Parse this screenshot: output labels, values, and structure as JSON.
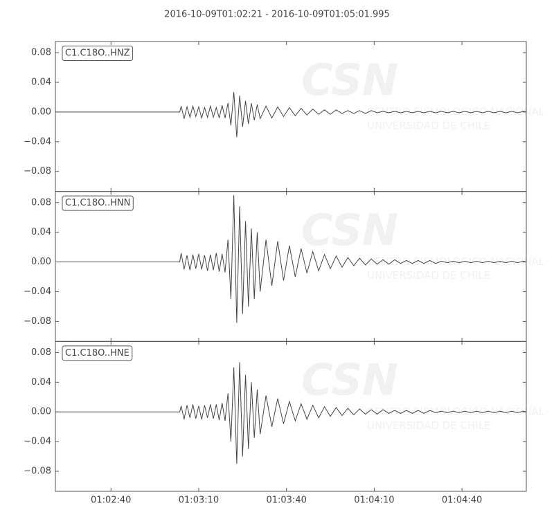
{
  "title": "2016-10-09T01:02:21  -  2016-10-09T01:05:01.995",
  "watermark": [
    "CSN",
    "CENTRO SISMOLOGICO NACIONAL",
    "UNIVERSIDAD DE CHILE"
  ],
  "chart_data": [
    {
      "type": "line",
      "xlim": [
        0,
        160.995
      ],
      "ylim": [
        -0.107,
        0.095
      ],
      "yticks": [
        {
          "value": -0.08,
          "label": "−0.08"
        },
        {
          "value": -0.04,
          "label": "−0.04"
        },
        {
          "value": 0,
          "label": "0.00"
        },
        0.04,
        0.08
      ],
      "x": [
        0,
        42.5,
        43,
        44,
        45,
        46,
        47,
        48,
        49,
        50,
        51,
        52,
        53,
        54,
        55,
        56,
        57,
        58,
        59,
        60,
        61,
        62,
        63,
        64,
        65,
        66,
        67,
        68,
        69,
        70,
        72,
        74,
        76,
        78,
        80,
        82,
        84,
        86,
        88,
        90,
        92,
        94,
        96,
        98,
        100,
        102,
        104,
        106,
        108,
        110,
        112,
        114,
        116,
        118,
        120,
        122,
        124,
        126,
        128,
        130,
        132,
        134,
        136,
        138,
        140,
        142,
        144,
        146,
        148,
        150,
        152,
        154,
        156,
        158,
        160,
        161
      ],
      "series": [
        {
          "name": "C1.C18O..HNZ",
          "color": "#444444",
          "values": [
            0,
            0,
            0.008,
            -0.009,
            0.007,
            -0.007,
            0.008,
            -0.006,
            0.007,
            -0.008,
            0.006,
            -0.007,
            0.008,
            -0.007,
            0.006,
            -0.008,
            0.009,
            -0.008,
            0.012,
            -0.018,
            0.027,
            -0.034,
            0.022,
            -0.02,
            0.015,
            -0.016,
            0.012,
            -0.011,
            0.01,
            -0.009,
            0.008,
            -0.008,
            0.007,
            -0.006,
            0.006,
            -0.005,
            0.005,
            -0.004,
            0.004,
            -0.003,
            0.003,
            -0.003,
            0.003,
            -0.002,
            0.002,
            -0.002,
            0.002,
            -0.002,
            0.002,
            -0.001,
            0.001,
            -0.001,
            0.001,
            -0.001,
            0.001,
            -0.001,
            0.001,
            -0.001,
            0.001,
            -0.001,
            0.001,
            -0.001,
            0.001,
            -0.001,
            0.001,
            -0.001,
            0.001,
            -0.001,
            0.001,
            -0.001,
            0.001,
            -0.001,
            0.001,
            -0.001,
            0.001,
            0
          ]
        }
      ]
    },
    {
      "type": "line",
      "xlim": [
        0,
        160.995
      ],
      "ylim": [
        -0.107,
        0.095
      ],
      "yticks": [
        {
          "value": -0.08,
          "label": "−0.08"
        },
        {
          "value": -0.04,
          "label": "−0.04"
        },
        {
          "value": 0,
          "label": "0.00"
        },
        0.04,
        0.08
      ],
      "x": [
        0,
        42.5,
        43,
        44,
        45,
        46,
        47,
        48,
        49,
        50,
        51,
        52,
        53,
        54,
        55,
        56,
        57,
        58,
        59,
        60,
        61,
        62,
        63,
        64,
        65,
        66,
        67,
        68,
        69,
        70,
        72,
        74,
        76,
        78,
        80,
        82,
        84,
        86,
        88,
        90,
        92,
        94,
        96,
        98,
        100,
        102,
        104,
        106,
        108,
        110,
        112,
        114,
        116,
        118,
        120,
        122,
        124,
        126,
        128,
        130,
        132,
        134,
        136,
        138,
        140,
        142,
        144,
        146,
        148,
        150,
        152,
        154,
        156,
        158,
        160,
        161
      ],
      "series": [
        {
          "name": "C1.C18O..HNN",
          "color": "#444444",
          "values": [
            0,
            0,
            0.012,
            -0.01,
            0.009,
            -0.011,
            0.01,
            -0.009,
            0.011,
            -0.01,
            0.009,
            -0.012,
            0.01,
            -0.011,
            0.012,
            -0.013,
            0.011,
            -0.014,
            0.03,
            -0.05,
            0.09,
            -0.082,
            0.075,
            -0.07,
            0.055,
            -0.06,
            0.045,
            -0.05,
            0.04,
            -0.04,
            0.03,
            -0.032,
            0.028,
            -0.025,
            0.022,
            -0.02,
            0.018,
            -0.015,
            0.014,
            -0.012,
            0.01,
            -0.009,
            0.008,
            -0.007,
            0.006,
            -0.005,
            0.005,
            -0.004,
            0.004,
            -0.003,
            0.003,
            -0.003,
            0.003,
            -0.002,
            0.002,
            -0.002,
            0.002,
            -0.002,
            0.002,
            -0.002,
            0.001,
            -0.001,
            0.001,
            -0.001,
            0.001,
            -0.001,
            0.001,
            -0.001,
            0.001,
            -0.001,
            0.001,
            -0.001,
            0.001,
            -0.001,
            0.001,
            0
          ]
        }
      ]
    },
    {
      "type": "line",
      "xlim": [
        0,
        160.995
      ],
      "ylim": [
        -0.107,
        0.095
      ],
      "yticks": [
        {
          "value": -0.08,
          "label": "−0.08"
        },
        {
          "value": -0.04,
          "label": "−0.04"
        },
        {
          "value": 0,
          "label": "0.00"
        },
        0.04,
        0.08
      ],
      "xticks": [
        {
          "value": 19,
          "label": "01:02:40"
        },
        {
          "value": 49,
          "label": "01:03:10"
        },
        {
          "value": 79,
          "label": "01:03:40"
        },
        {
          "value": 109,
          "label": "01:04:10"
        },
        {
          "value": 139,
          "label": "01:04:40"
        }
      ],
      "x": [
        0,
        42.5,
        43,
        44,
        45,
        46,
        47,
        48,
        49,
        50,
        51,
        52,
        53,
        54,
        55,
        56,
        57,
        58,
        59,
        60,
        61,
        62,
        63,
        64,
        65,
        66,
        67,
        68,
        69,
        70,
        72,
        74,
        76,
        78,
        80,
        82,
        84,
        86,
        88,
        90,
        92,
        94,
        96,
        98,
        100,
        102,
        104,
        106,
        108,
        110,
        112,
        114,
        116,
        118,
        120,
        122,
        124,
        126,
        128,
        130,
        132,
        134,
        136,
        138,
        140,
        142,
        144,
        146,
        148,
        150,
        152,
        154,
        156,
        158,
        160,
        161
      ],
      "series": [
        {
          "name": "C1.C18O..HNE",
          "color": "#444444",
          "values": [
            0,
            0,
            0.008,
            -0.01,
            0.009,
            -0.008,
            0.01,
            -0.009,
            0.008,
            -0.01,
            0.009,
            -0.008,
            0.01,
            -0.009,
            0.01,
            -0.011,
            0.012,
            -0.012,
            0.025,
            -0.04,
            0.06,
            -0.07,
            0.067,
            -0.06,
            0.05,
            -0.05,
            0.04,
            -0.035,
            0.03,
            -0.03,
            0.022,
            -0.02,
            0.018,
            -0.016,
            0.014,
            -0.012,
            0.011,
            -0.01,
            0.009,
            -0.008,
            0.007,
            -0.006,
            0.006,
            -0.005,
            0.005,
            -0.004,
            0.004,
            -0.003,
            0.003,
            -0.003,
            0.003,
            -0.002,
            0.002,
            -0.002,
            0.002,
            -0.002,
            0.002,
            -0.002,
            0.002,
            -0.001,
            0.001,
            -0.001,
            0.001,
            -0.001,
            0.001,
            -0.001,
            0.001,
            -0.001,
            0.001,
            -0.001,
            0.001,
            -0.001,
            0.001,
            -0.001,
            0.001,
            0
          ]
        }
      ]
    }
  ]
}
